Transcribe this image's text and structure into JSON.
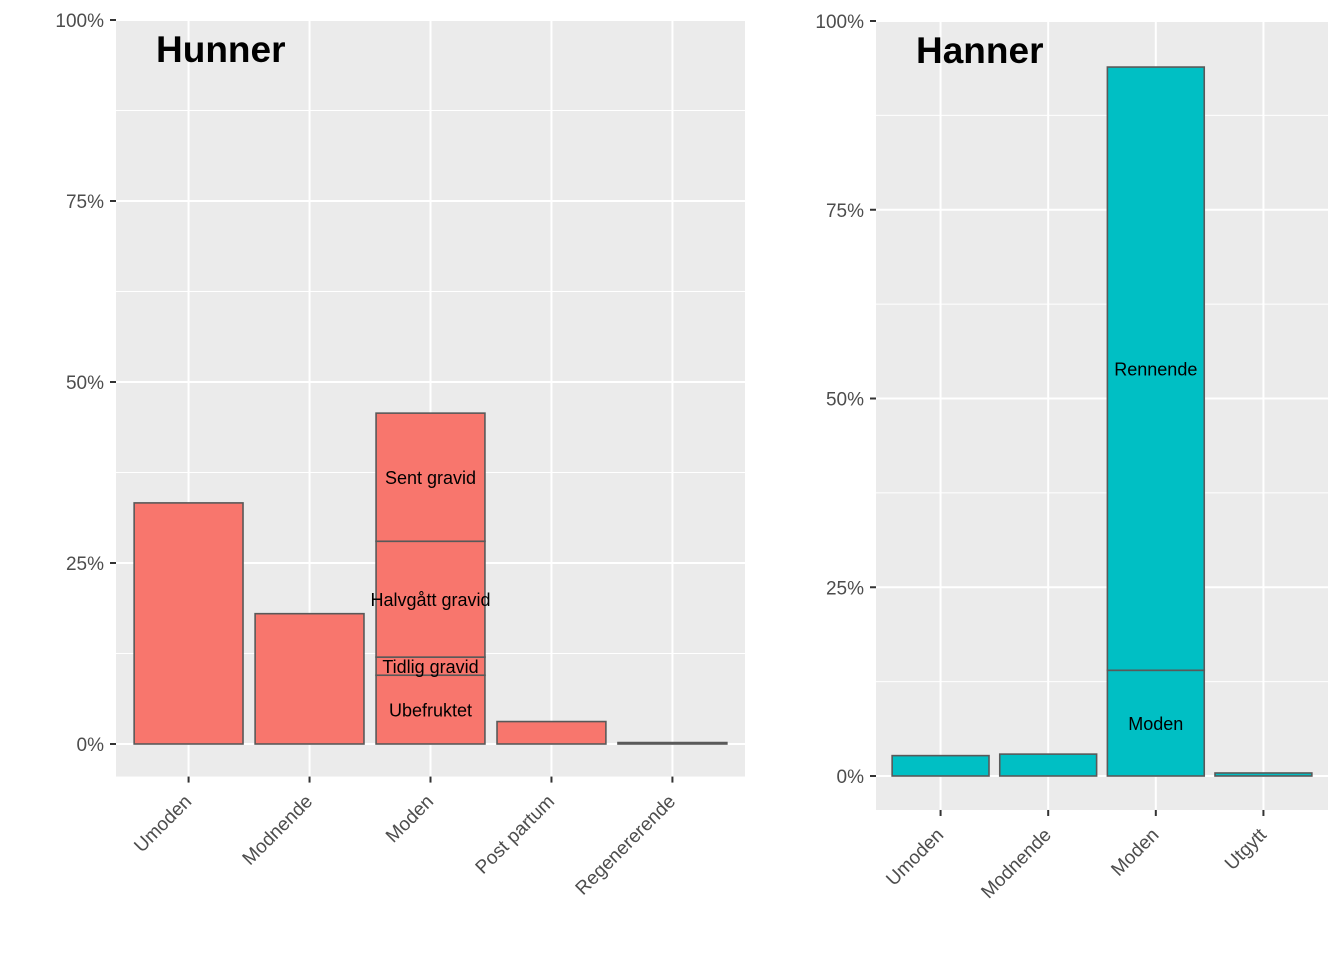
{
  "chart_data": [
    {
      "type": "bar",
      "stacked": true,
      "title": "Hunner",
      "xlabel": "",
      "ylabel": "",
      "ylim": [
        -0.045,
        1.0
      ],
      "yticks": [
        0,
        0.25,
        0.5,
        0.75,
        1.0
      ],
      "ytick_labels": [
        "0%",
        "25%",
        "50%",
        "75%",
        "100%"
      ],
      "categories": [
        "Umoden",
        "Modnende",
        "Moden",
        "Post partum",
        "Regenererende"
      ],
      "fill": "#f8766d",
      "bars": [
        {
          "category": "Umoden",
          "segments": [
            {
              "label": "",
              "value": 0.333
            }
          ]
        },
        {
          "category": "Modnende",
          "segments": [
            {
              "label": "",
              "value": 0.18
            }
          ]
        },
        {
          "category": "Moden",
          "segments": [
            {
              "label": "Ubefruktet",
              "value": 0.095
            },
            {
              "label": "Tidlig gravid",
              "value": 0.025
            },
            {
              "label": "Halvgått gravid",
              "value": 0.16
            },
            {
              "label": "Sent gravid",
              "value": 0.177
            }
          ]
        },
        {
          "category": "Post partum",
          "segments": [
            {
              "label": "",
              "value": 0.031
            }
          ]
        },
        {
          "category": "Regenererende",
          "segments": [
            {
              "label": "",
              "value": 0.002
            }
          ]
        }
      ]
    },
    {
      "type": "bar",
      "stacked": true,
      "title": "Hanner",
      "xlabel": "",
      "ylabel": "",
      "ylim": [
        -0.045,
        1.0
      ],
      "yticks": [
        0,
        0.25,
        0.5,
        0.75,
        1.0
      ],
      "ytick_labels": [
        "0%",
        "25%",
        "50%",
        "75%",
        "100%"
      ],
      "categories": [
        "Umoden",
        "Modnende",
        "Moden",
        "Utgytt"
      ],
      "fill": "#00bfc4",
      "bars": [
        {
          "category": "Umoden",
          "segments": [
            {
              "label": "",
              "value": 0.027
            }
          ]
        },
        {
          "category": "Modnende",
          "segments": [
            {
              "label": "",
              "value": 0.029
            }
          ]
        },
        {
          "category": "Moden",
          "segments": [
            {
              "label": "Moden",
              "value": 0.14
            },
            {
              "label": "Rennende",
              "value": 0.799
            }
          ]
        },
        {
          "category": "Utgytt",
          "segments": [
            {
              "label": "",
              "value": 0.004
            }
          ]
        }
      ]
    }
  ]
}
